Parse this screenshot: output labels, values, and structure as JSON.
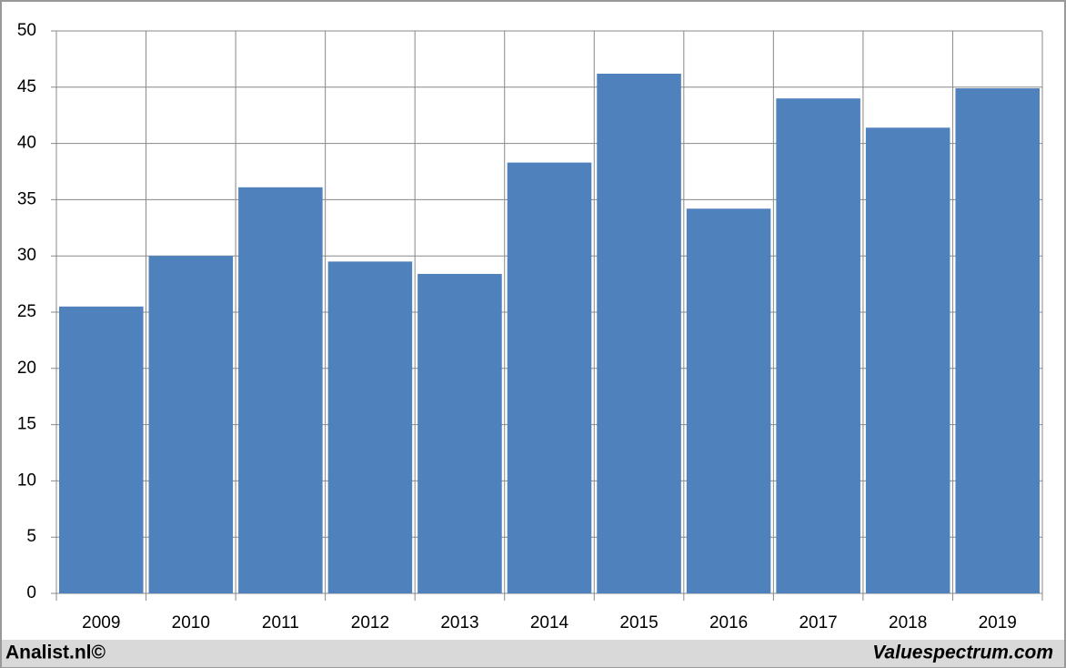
{
  "chart_data": {
    "type": "bar",
    "categories": [
      "2009",
      "2010",
      "2011",
      "2012",
      "2013",
      "2014",
      "2015",
      "2016",
      "2017",
      "2018",
      "2019"
    ],
    "values": [
      25.5,
      30.0,
      36.1,
      29.5,
      28.4,
      38.3,
      46.2,
      34.2,
      44.0,
      41.4,
      44.9
    ],
    "color": "#4f81bd",
    "ylim": [
      0,
      50
    ],
    "yticks": [
      0,
      5,
      10,
      15,
      20,
      25,
      30,
      35,
      40,
      45,
      50
    ],
    "grid": true
  },
  "footer": {
    "left": "Analist.nl©",
    "right": "Valuespectrum.com"
  }
}
